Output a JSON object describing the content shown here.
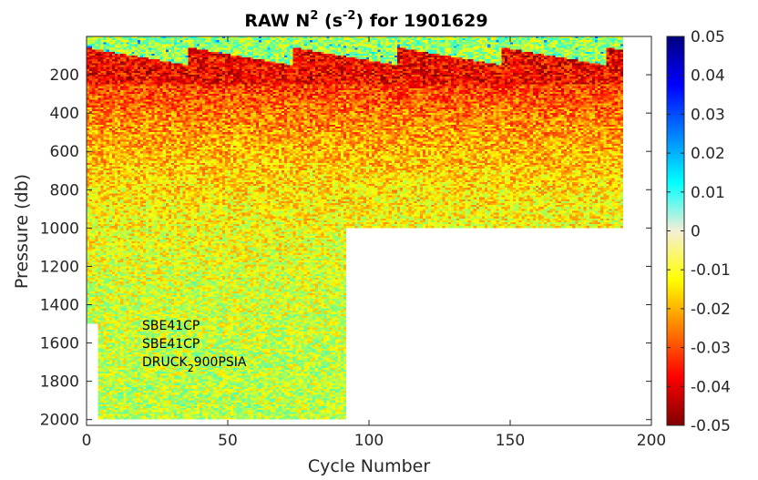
{
  "chart_data": {
    "type": "heatmap",
    "title": {
      "pre": "RAW N",
      "sup": "2",
      "mid": " (s",
      "sup2": "-2",
      "post": ") for 1901629"
    },
    "xlabel": "Cycle Number",
    "ylabel": "Pressure (db)",
    "xlim": [
      0,
      200
    ],
    "ylim": [
      2030,
      0
    ],
    "x_ticks": [
      0,
      50,
      100,
      150,
      200
    ],
    "y_ticks": [
      200,
      400,
      600,
      800,
      1000,
      1200,
      1400,
      1600,
      1800,
      2000
    ],
    "colorbar": {
      "colormap": "jet",
      "clim": [
        -0.05,
        0.05
      ],
      "ticks": [
        "0.05",
        "0.04",
        "0.03",
        "0.02",
        "0.01",
        "0",
        "-0.01",
        "-0.02",
        "-0.03",
        "-0.04",
        "-0.05"
      ],
      "tick_values": [
        0.05,
        0.04,
        0.03,
        0.02,
        0.01,
        0,
        -0.01,
        -0.02,
        -0.03,
        -0.04,
        -0.05
      ]
    },
    "data_coverage": {
      "cycles_to_2000db": [
        5,
        93
      ],
      "cycles_to_1000db": [
        93,
        190
      ],
      "pressure_step_db": 10
    },
    "annotations": [
      "SBE41CP",
      "SBE41CP",
      "DRUCK",
      "2",
      "900PSIA"
    ]
  }
}
